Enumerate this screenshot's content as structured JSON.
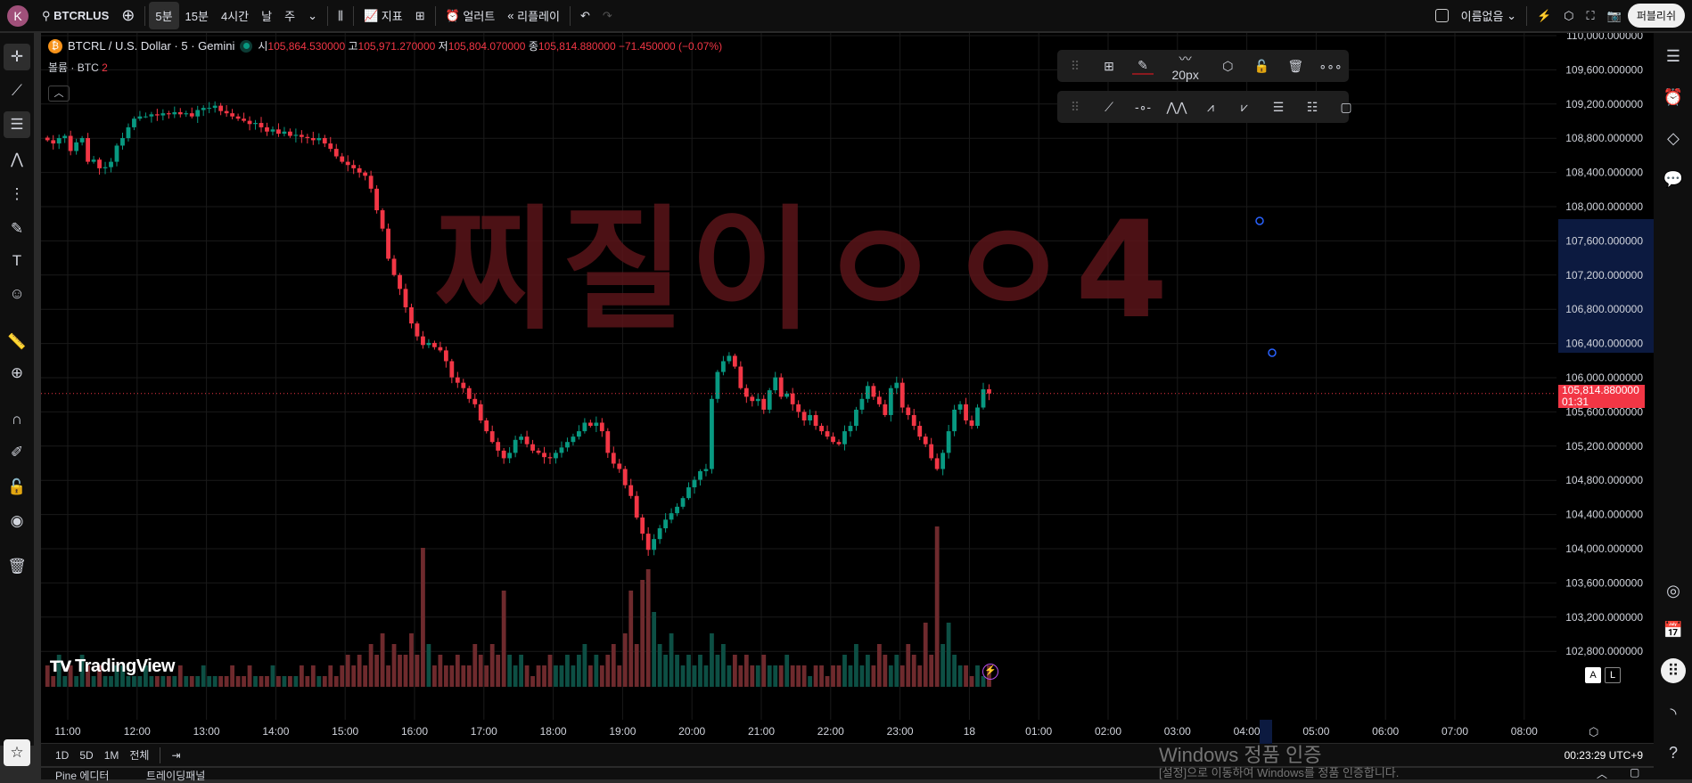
{
  "topbar": {
    "avatar": "K",
    "symbol": "BTCRLUS",
    "intervals": [
      "5분",
      "15분",
      "4시간",
      "날",
      "주"
    ],
    "active_interval": "5분",
    "indicators": "지표",
    "alert": "얼러트",
    "replay": "리플레이",
    "layout_name": "이름없음",
    "publish": "퍼블리쉬"
  },
  "legend": {
    "symbol": "BTCRL / U.S. Dollar · 5 · Gemini",
    "o_label": "시",
    "o": "105,864.530000",
    "h_label": "고",
    "h": "105,971.270000",
    "l_label": "저",
    "l": "105,804.070000",
    "c_label": "종",
    "c": "105,814.880000",
    "change": "−71.450000 (−0.07%)",
    "volume_label": "볼륨 · BTC",
    "volume_value": "2"
  },
  "drawing_toolbar": {
    "stroke_width": "20px"
  },
  "watermark_drawing": "찌질이ㅇㅇ4",
  "logo": "TradingView",
  "colors": {
    "up": "#089981",
    "down": "#f23645",
    "drawing": "#6b1a1f",
    "selection": "#0c1a40"
  },
  "price_axis": {
    "labels": [
      "110,000.000000",
      "109,600.000000",
      "109,200.000000",
      "108,800.000000",
      "108,400.000000",
      "108,000.000000",
      "107,600.000000",
      "107,200.000000",
      "106,800.000000",
      "106,400.000000",
      "106,000.000000",
      "105,600.000000",
      "105,200.000000",
      "104,800.000000",
      "104,400.000000",
      "104,000.000000",
      "103,600.000000",
      "103,200.000000",
      "102,800.000000"
    ],
    "current_price": "105,814.880000",
    "countdown": "01:31",
    "scale_buttons": [
      "A",
      "L"
    ]
  },
  "time_axis": {
    "labels": [
      "11:00",
      "12:00",
      "13:00",
      "14:00",
      "15:00",
      "16:00",
      "17:00",
      "18:00",
      "19:00",
      "20:00",
      "21:00",
      "22:00",
      "23:00",
      "18",
      "01:00",
      "02:00",
      "03:00",
      "04:00",
      "05:00",
      "06:00",
      "07:00",
      "08:00"
    ]
  },
  "bottom": {
    "ranges": [
      "1D",
      "5D",
      "1M",
      "전체"
    ],
    "clock": "00:23:29 UTC+9",
    "tabs": [
      "Pine 에디터",
      "트레이딩패널"
    ]
  },
  "windows_notice": {
    "title": "Windows 정품 인증",
    "body": "[설정]으로 이동하여 Windows를 정품 인증합니다."
  },
  "chart_data": {
    "type": "candlestick",
    "interval": "5m",
    "start": "10:40",
    "ylim": [
      102600,
      110000
    ],
    "close": [
      108777,
      108739,
      108802,
      108828,
      108651,
      108752,
      108802,
      108525,
      108550,
      108449,
      108462,
      108525,
      108714,
      108802,
      108928,
      109029,
      109055,
      109055,
      109080,
      109067,
      109092,
      109080,
      109105,
      109080,
      109092,
      109055,
      109130,
      109155,
      109155,
      109181,
      109118,
      109092,
      109055,
      109029,
      109004,
      108966,
      108979,
      108928,
      108878,
      108903,
      108853,
      108878,
      108828,
      108840,
      108815,
      108802,
      108777,
      108802,
      108739,
      108676,
      108588,
      108525,
      108487,
      108449,
      108399,
      108361,
      108210,
      107958,
      107743,
      107391,
      107201,
      107038,
      106823,
      106634,
      106483,
      106382,
      106407,
      106357,
      106319,
      106193,
      106004,
      105941,
      105878,
      105752,
      105689,
      105500,
      105374,
      105248,
      105147,
      105058,
      105121,
      105273,
      105311,
      105222,
      105147,
      105121,
      105071,
      105058,
      105121,
      105184,
      105248,
      105311,
      105374,
      105474,
      105437,
      105474,
      105374,
      105121,
      104995,
      104932,
      104743,
      104617,
      104365,
      104176,
      103987,
      104113,
      104239,
      104340,
      104415,
      104491,
      104592,
      104718,
      104806,
      104907,
      104932,
      105752,
      106067,
      106193,
      106256,
      106130,
      105878,
      105777,
      105727,
      105752,
      105626,
      105853,
      106004,
      105777,
      105815,
      105689,
      105600,
      105500,
      105563,
      105437,
      105374,
      105311,
      105248,
      105222,
      105374,
      105437,
      105626,
      105752,
      105903,
      105777,
      105689,
      105563,
      105878,
      105941,
      105651,
      105563,
      105437,
      105311,
      105222,
      105058,
      104932,
      105121,
      105374,
      105626,
      105689,
      105500,
      105437,
      105651,
      105864,
      105814.88
    ],
    "volume": [
      2,
      1,
      3,
      1,
      2,
      1,
      3,
      2,
      1,
      2,
      1,
      1,
      2,
      2,
      1,
      1,
      1,
      2,
      1,
      1,
      1,
      1,
      1,
      2,
      1,
      1,
      1,
      2,
      1,
      1,
      1,
      1,
      2,
      1,
      1,
      2,
      1,
      1,
      1,
      2,
      1,
      1,
      1,
      1,
      2,
      1,
      2,
      1,
      1,
      2,
      1,
      2,
      3,
      2,
      3,
      2,
      4,
      3,
      5,
      2,
      4,
      3,
      3,
      5,
      3,
      13,
      4,
      2,
      3,
      2,
      2,
      3,
      2,
      2,
      4,
      3,
      2,
      4,
      3,
      9,
      3,
      2,
      3,
      2,
      1,
      2,
      2,
      3,
      2,
      2,
      3,
      2,
      3,
      4,
      2,
      3,
      2,
      3,
      4,
      2,
      5,
      9,
      4,
      10,
      11,
      7,
      4,
      3,
      5,
      3,
      2,
      3,
      2,
      3,
      2,
      5,
      3,
      4,
      2,
      3,
      2,
      3,
      2,
      2,
      3,
      2,
      2,
      2,
      3,
      2,
      2,
      2,
      1,
      2,
      2,
      1,
      2,
      2,
      3,
      2,
      4,
      2,
      3,
      2,
      4,
      3,
      2,
      3,
      2,
      4,
      3,
      2,
      6,
      3,
      15,
      4,
      6,
      3,
      2,
      2,
      1,
      2,
      1,
      2
    ]
  }
}
